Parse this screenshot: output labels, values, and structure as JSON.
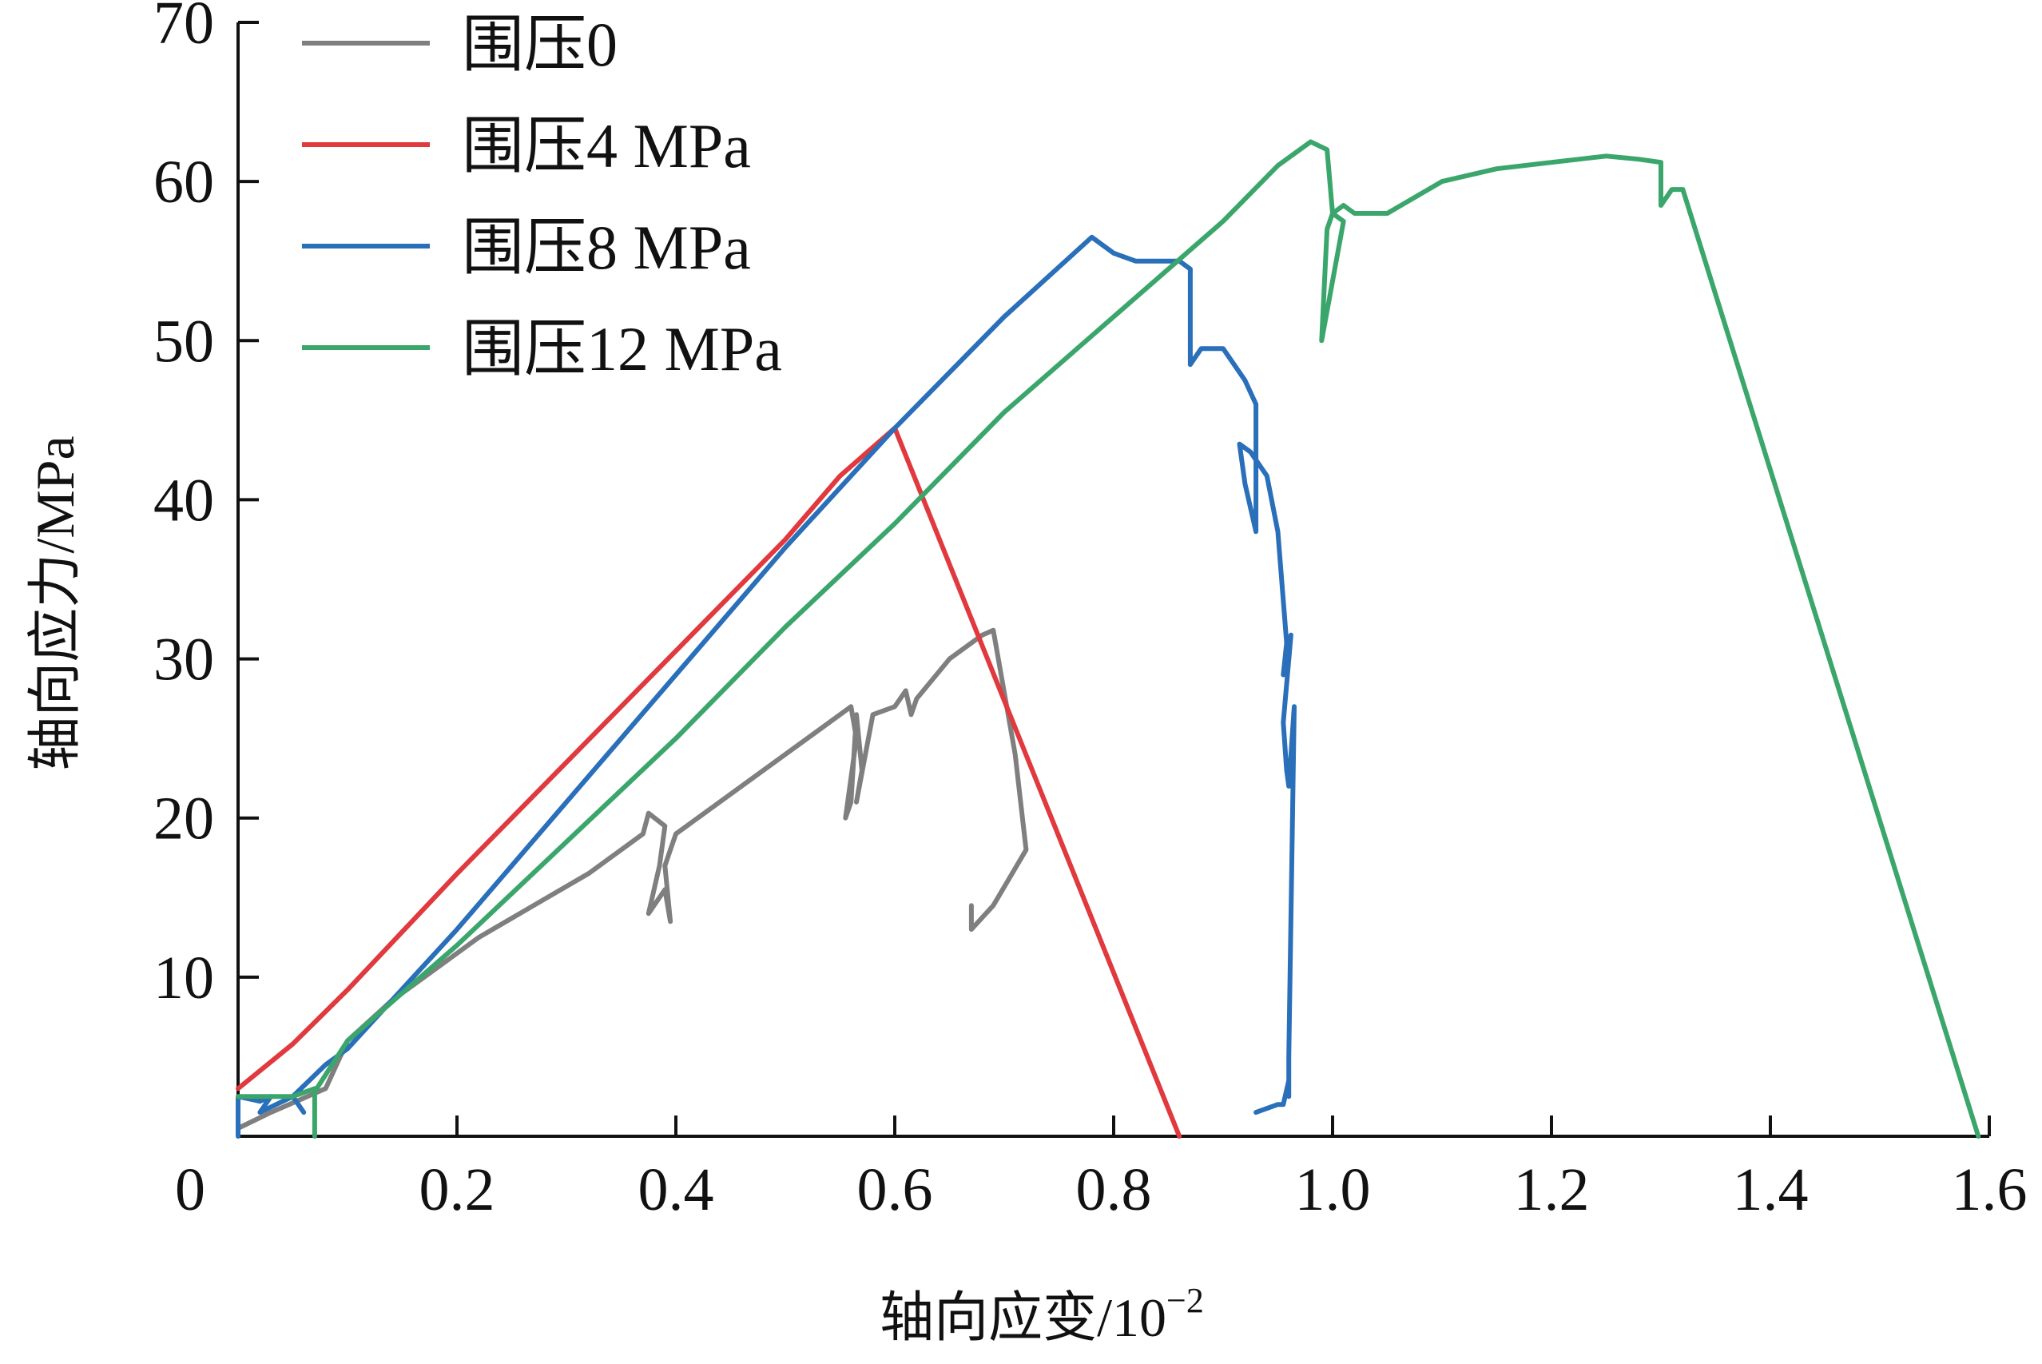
{
  "chart_data": {
    "type": "line",
    "xlabel": "轴向应变/10",
    "xlabel_exponent": "−2",
    "ylabel": "轴向应力/MPa",
    "xlim": [
      0,
      1.6
    ],
    "ylim": [
      0,
      70
    ],
    "x_ticks": [
      0,
      0.2,
      0.4,
      0.6,
      0.8,
      1.0,
      1.2,
      1.4,
      1.6
    ],
    "x_tick_labels": [
      "0",
      "0.2",
      "0.4",
      "0.6",
      "0.8",
      "1.0",
      "1.2",
      "1.4",
      "1.6"
    ],
    "y_ticks": [
      10,
      20,
      30,
      40,
      50,
      60,
      70
    ],
    "y_tick_labels": [
      "10",
      "20",
      "30",
      "40",
      "50",
      "60",
      "70"
    ],
    "grid": false,
    "legend_position": "top-left",
    "series": [
      {
        "name": "围压0",
        "color": "#7f7f7f",
        "x": [
          0.0,
          0.03,
          0.08,
          0.1,
          0.14,
          0.18,
          0.22,
          0.27,
          0.32,
          0.37,
          0.375,
          0.39,
          0.385,
          0.375,
          0.39,
          0.395,
          0.39,
          0.395,
          0.4,
          0.45,
          0.5,
          0.55,
          0.56,
          0.565,
          0.555,
          0.56,
          0.565,
          0.57,
          0.565,
          0.58,
          0.6,
          0.61,
          0.615,
          0.62,
          0.65,
          0.68,
          0.69,
          0.71,
          0.72,
          0.69,
          0.67,
          0.67
        ],
        "y": [
          0.5,
          1.5,
          3.0,
          6.0,
          8.5,
          10.5,
          12.5,
          14.5,
          16.5,
          19.0,
          20.3,
          19.5,
          17.0,
          14.0,
          15.5,
          13.5,
          17.0,
          18.0,
          19.0,
          21.5,
          24.0,
          26.5,
          27.0,
          25.0,
          20.0,
          21.0,
          26.5,
          23.0,
          21.0,
          26.5,
          27.0,
          28.0,
          26.5,
          27.5,
          30.0,
          31.5,
          31.8,
          24.0,
          18.0,
          14.5,
          13.0,
          14.5
        ]
      },
      {
        "name": "围压4 MPa",
        "color": "#e0393e",
        "x": [
          0.0,
          0.05,
          0.1,
          0.2,
          0.3,
          0.4,
          0.5,
          0.55,
          0.6,
          0.6,
          0.86
        ],
        "y": [
          3.0,
          5.8,
          9.2,
          16.5,
          23.5,
          30.5,
          37.5,
          41.5,
          44.5,
          44.5,
          0.0
        ]
      },
      {
        "name": "围压8 MPa",
        "color": "#2a6fb9",
        "x": [
          0.0,
          0.0,
          0.02,
          0.03,
          0.02,
          0.05,
          0.06,
          0.05,
          0.08,
          0.1,
          0.14,
          0.2,
          0.3,
          0.4,
          0.5,
          0.6,
          0.7,
          0.78,
          0.8,
          0.82,
          0.86,
          0.87,
          0.87,
          0.88,
          0.9,
          0.92,
          0.93,
          0.93,
          0.93,
          0.92,
          0.915,
          0.925,
          0.94,
          0.95,
          0.958,
          0.955,
          0.962,
          0.955,
          0.958,
          0.96,
          0.965,
          0.96,
          0.96,
          0.96,
          0.955,
          0.95,
          0.93
        ],
        "y": [
          0.0,
          2.5,
          2.2,
          2.5,
          1.5,
          2.5,
          1.5,
          2.5,
          4.5,
          5.5,
          8.5,
          13.0,
          21.0,
          29.0,
          37.0,
          44.5,
          51.5,
          56.5,
          55.5,
          55.0,
          55.0,
          54.5,
          48.5,
          49.5,
          49.5,
          47.5,
          46.0,
          42.0,
          38.0,
          41.0,
          43.5,
          43.0,
          41.5,
          38.0,
          31.0,
          29.0,
          31.5,
          26.0,
          23.0,
          22.0,
          27.0,
          5.0,
          2.5,
          3.5,
          2.0,
          2.0,
          1.5
        ]
      },
      {
        "name": "围压12 MPa",
        "color": "#3ba66b",
        "x": [
          0.0,
          0.05,
          0.07,
          0.07,
          0.07,
          0.1,
          0.2,
          0.3,
          0.4,
          0.5,
          0.6,
          0.7,
          0.8,
          0.9,
          0.95,
          0.98,
          0.995,
          1.0,
          1.01,
          0.99,
          0.995,
          1.0,
          1.01,
          1.02,
          1.05,
          1.1,
          1.15,
          1.2,
          1.25,
          1.28,
          1.3,
          1.3,
          1.31,
          1.32,
          1.59
        ],
        "y": [
          2.5,
          2.5,
          3.0,
          0.0,
          2.8,
          6.0,
          12.0,
          18.5,
          25.0,
          32.0,
          38.5,
          45.5,
          51.5,
          57.5,
          61.0,
          62.5,
          62.0,
          58.0,
          57.5,
          50.0,
          57.0,
          58.0,
          58.5,
          58.0,
          58.0,
          60.0,
          60.8,
          61.2,
          61.6,
          61.4,
          61.2,
          58.5,
          59.5,
          59.5,
          0.0
        ]
      }
    ]
  }
}
